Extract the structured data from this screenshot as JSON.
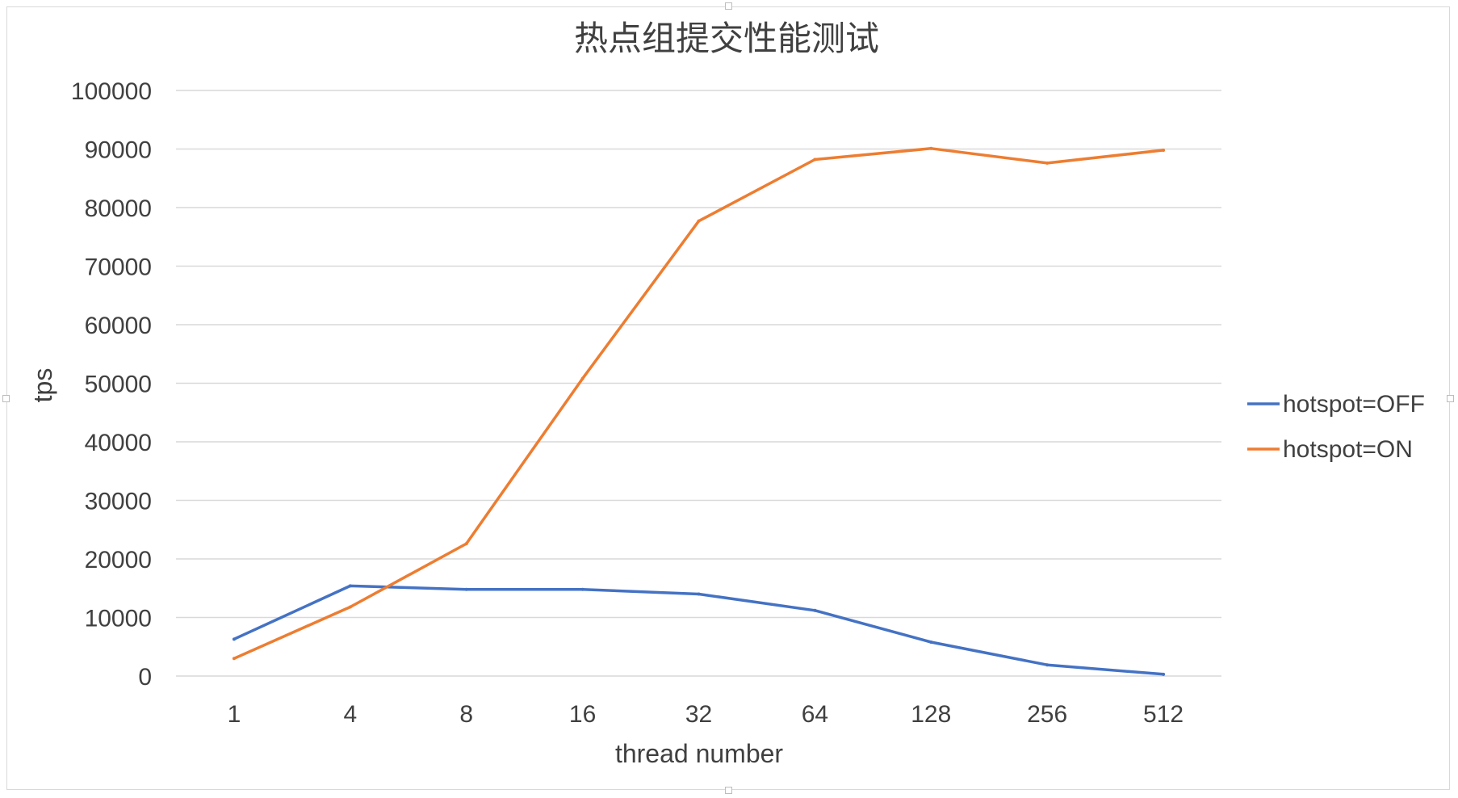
{
  "chart_data": {
    "type": "line",
    "title": "热点组提交性能测试",
    "xlabel": "thread number",
    "ylabel": "tps",
    "categories": [
      "1",
      "4",
      "8",
      "16",
      "32",
      "64",
      "128",
      "256",
      "512"
    ],
    "ylim": [
      0,
      100000
    ],
    "ytick_step": 10000,
    "grid": true,
    "legend_position": "right",
    "series": [
      {
        "name": "hotspot=OFF",
        "color": "#4472c4",
        "values": [
          6300,
          15400,
          14800,
          14800,
          14000,
          11200,
          5800,
          1900,
          300
        ]
      },
      {
        "name": "hotspot=ON",
        "color": "#ed7d31",
        "values": [
          3000,
          11800,
          22600,
          50800,
          77700,
          88200,
          90100,
          87600,
          89800
        ]
      }
    ]
  }
}
